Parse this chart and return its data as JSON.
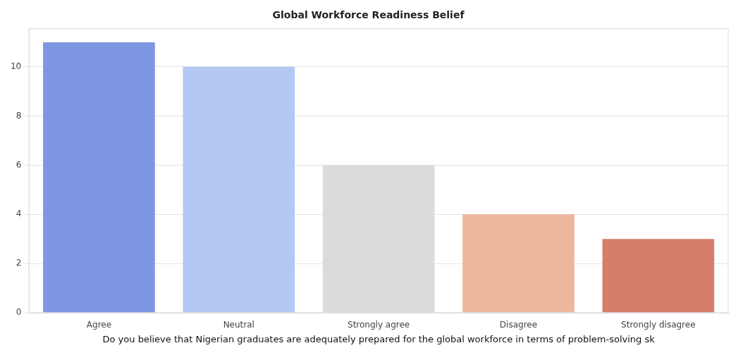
{
  "chart_data": {
    "type": "bar",
    "title": "Global Workforce Readiness Belief",
    "xlabel": "Do you believe that Nigerian graduates are adequately prepared for the global workforce in terms of problem-solving sk",
    "categories": [
      "Agree",
      "Neutral",
      "Strongly agree",
      "Disagree",
      "Strongly disagree"
    ],
    "values": [
      11,
      10,
      6,
      4,
      3
    ],
    "colors": [
      "#7f96e2",
      "#b3c9f3",
      "#dcdbdb",
      "#edb79e",
      "#d57e6a"
    ],
    "ylim": [
      0,
      11.55
    ],
    "yticks": [
      0,
      2,
      4,
      6,
      8,
      10
    ],
    "grid": "y",
    "legend": false
  }
}
